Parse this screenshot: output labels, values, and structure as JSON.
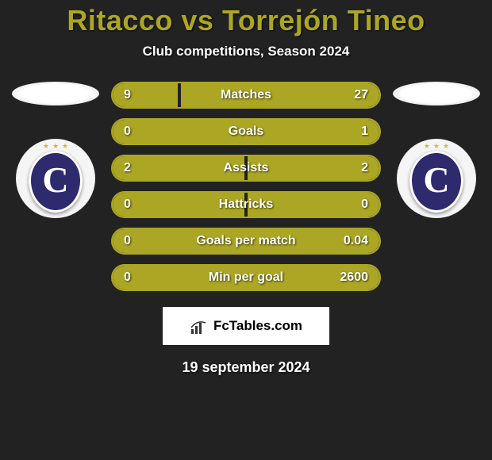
{
  "title": "Ritacco vs Torrejón Tineo",
  "subtitle": "Club competitions, Season 2024",
  "date": "19 september 2024",
  "colors": {
    "background": "#222222",
    "accent": "#aba624",
    "text": "#ffffff",
    "bar_border": "#aba624",
    "bar_fill": "#aba624",
    "shield": "#2d2a6e"
  },
  "stats": [
    {
      "label": "Matches",
      "left_val": "9",
      "right_val": "27",
      "left_pct": 25,
      "right_pct": 75
    },
    {
      "label": "Goals",
      "left_val": "0",
      "right_val": "1",
      "left_pct": 0,
      "right_pct": 100
    },
    {
      "label": "Assists",
      "left_val": "2",
      "right_val": "2",
      "left_pct": 50,
      "right_pct": 50
    },
    {
      "label": "Hattricks",
      "left_val": "0",
      "right_val": "0",
      "left_pct": 50,
      "right_pct": 50
    },
    {
      "label": "Goals per match",
      "left_val": "0",
      "right_val": "0.04",
      "left_pct": 0,
      "right_pct": 100
    },
    {
      "label": "Min per goal",
      "left_val": "0",
      "right_val": "2600",
      "left_pct": 0,
      "right_pct": 100
    }
  ],
  "logo": {
    "text": "FcTables.com"
  }
}
